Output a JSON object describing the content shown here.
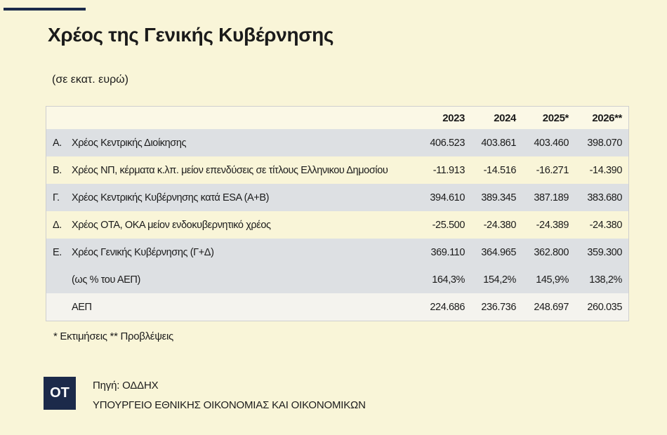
{
  "header": {
    "title": "Χρέος της Γενικής Κυβέρνησης",
    "subtitle": "(σε εκατ. ευρώ)"
  },
  "table": {
    "columns": [
      "2023",
      "2024",
      "2025*",
      "2026**"
    ],
    "rows": [
      {
        "letter": "Α.",
        "label": "Χρέος Κεντρικής Διοίκησης",
        "values": [
          "406.523",
          "403.861",
          "403.460",
          "398.070"
        ]
      },
      {
        "letter": "Β.",
        "label": "Χρέος ΝΠ, κέρματα κ.λπ. μείον επενδύσεις σε τίτλους Ελληνικου Δημοσίου",
        "values": [
          "-11.913",
          "-14.516",
          "-16.271",
          "-14.390"
        ]
      },
      {
        "letter": "Γ.",
        "label": "Χρέος Κεντρικής Κυβέρνησης κατά ESA (Α+Β)",
        "values": [
          "394.610",
          "389.345",
          "387.189",
          "383.680"
        ]
      },
      {
        "letter": "Δ.",
        "label": "Χρέος ΟΤΑ, ΟΚΑ μείον ενδοκυβερνητικό χρέος",
        "values": [
          "-25.500",
          "-24.380",
          "-24.389",
          "-24.380"
        ]
      },
      {
        "letter": "Ε.",
        "label": "Χρέος Γενικής Κυβέρνησης (Γ+Δ)",
        "values": [
          "369.110",
          "364.965",
          "362.800",
          "359.300"
        ]
      },
      {
        "label": "(ως % του ΑΕΠ)",
        "values": [
          "164,3%",
          "154,2%",
          "145,9%",
          "138,2%"
        ]
      },
      {
        "label": "ΑΕΠ",
        "values": [
          "224.686",
          "236.736",
          "248.697",
          "260.035"
        ]
      }
    ]
  },
  "footnote": "* Εκτιμήσεις ** Προβλέψεις",
  "logo": "ΟΤ",
  "source": [
    "Πηγή: ΟΔΔΗΧ",
    "ΥΠΟΥΡΓΕΙΟ ΕΘΝΙΚΗΣ ΟΙΚΟΝΟΜΙΑΣ ΚΑΙ ΟΙΚΟΝΟΜΙΚΩΝ"
  ]
}
